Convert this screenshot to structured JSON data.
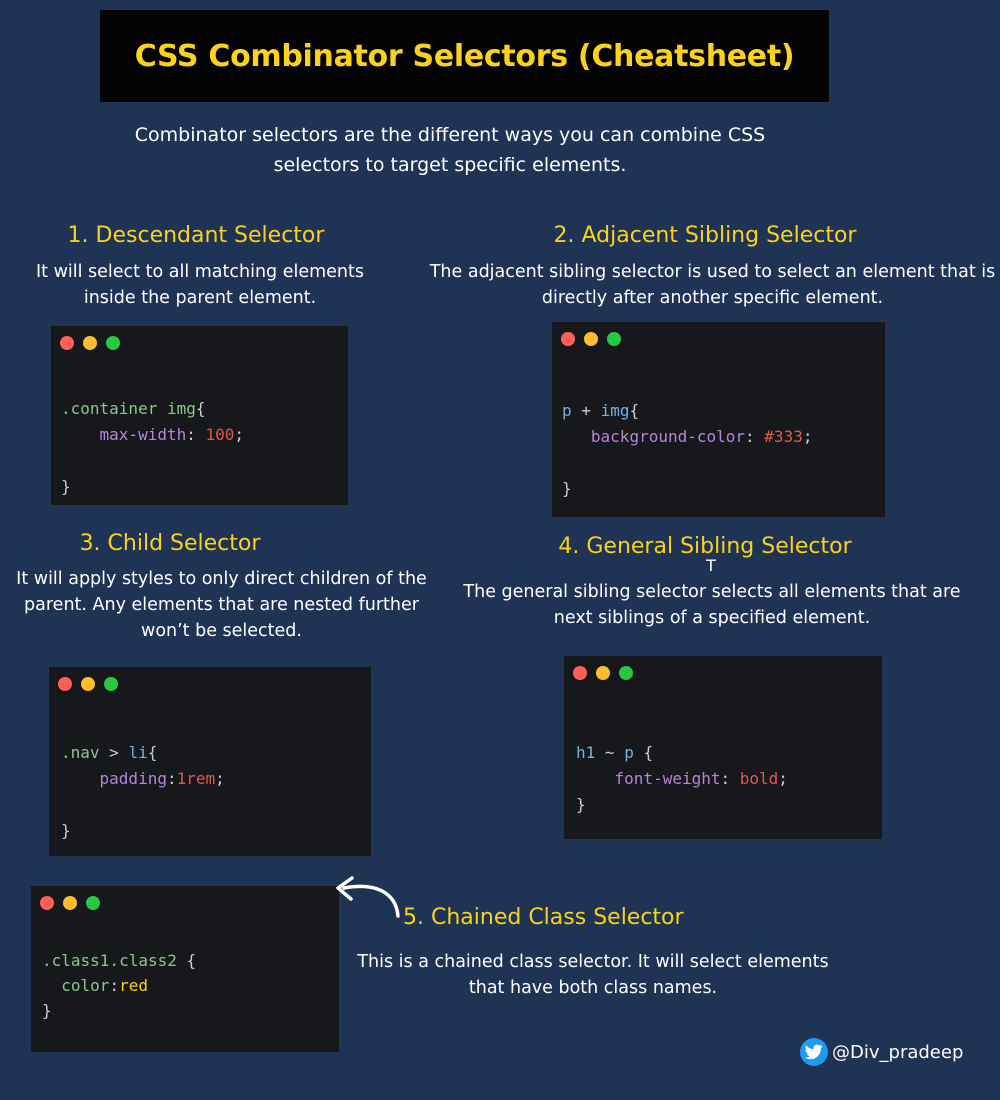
{
  "title": "CSS Combinator Selectors (Cheatsheet)",
  "intro": "Combinator selectors are the different ways you can combine CSS selectors to target specific elements.",
  "sections": [
    {
      "heading": "1. Descendant Selector",
      "description": "It will select to all matching elements inside the parent element.",
      "code": {
        "selector": ".container img",
        "open": "{",
        "property": "max-width",
        "value": "100",
        "close": "}"
      }
    },
    {
      "heading": "2. Adjacent Sibling Selector",
      "description": "The adjacent sibling selector is used to select an element that is directly after another specific element.",
      "code": {
        "tag1": "p",
        "combinator": "+",
        "tag2": "img",
        "open": "{",
        "property": "background-color",
        "value": "#333",
        "close": "}"
      }
    },
    {
      "heading": "3. Child Selector",
      "description": "It will apply styles to only direct children of the parent. Any elements that are nested further won’t be selected.",
      "code": {
        "selector": ".nav",
        "combinator": ">",
        "tag": "li",
        "open": "{",
        "property": "padding",
        "value": "1rem",
        "close": "}"
      }
    },
    {
      "heading": "4. General Sibling Selector",
      "description": "The general sibling selector selects all elements that are next siblings of a specified element.",
      "code": {
        "tag1": "h1",
        "combinator": "~",
        "tag2": "p",
        "open": "{",
        "property": "font-weight",
        "value": "bold",
        "close": "}"
      }
    },
    {
      "heading": "5. Chained Class Selector",
      "description": "This is a chained class selector. It will select elements that have both class names.",
      "code": {
        "selector": ".class1.class2",
        "open": "{",
        "property": "color",
        "value": "red",
        "close": "}"
      }
    }
  ],
  "cursor_glyph": "T",
  "author": {
    "icon": "twitter-bird-icon",
    "handle": "@Div_pradeep"
  },
  "colors": {
    "background": "#1f3355",
    "accent": "#fbd21b",
    "code_bg": "#16181c",
    "twitter": "#1d9bf0"
  }
}
